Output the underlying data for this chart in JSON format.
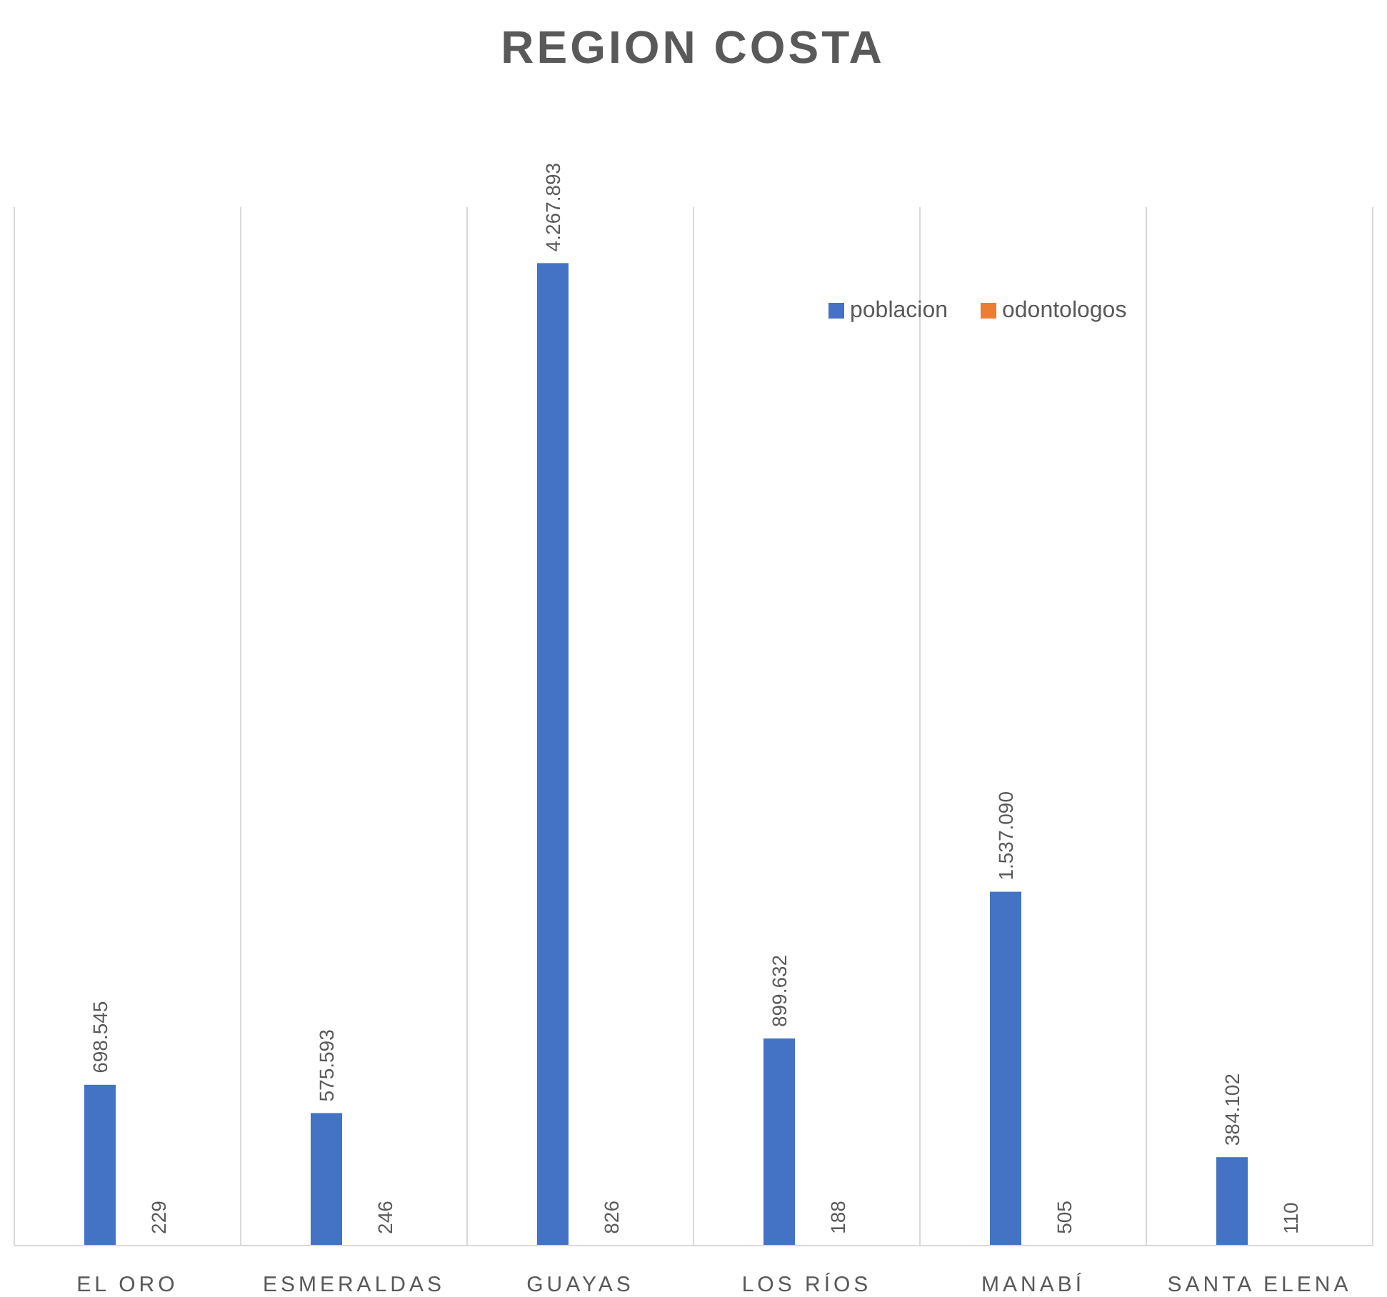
{
  "chart_data": {
    "type": "bar",
    "title": "REGION COSTA",
    "categories": [
      "EL ORO",
      "ESMERALDAS",
      "GUAYAS",
      "LOS RÍOS",
      "MANABÍ",
      "SANTA ELENA"
    ],
    "series": [
      {
        "name": "poblacion",
        "color": "#4472c4",
        "values": [
          698545,
          575593,
          4267893,
          899632,
          1537090,
          384102
        ],
        "value_labels": [
          "698.545",
          "575.593",
          "4.267.893",
          "899.632",
          "1.537.090",
          "384.102"
        ]
      },
      {
        "name": "odontologos",
        "color": "#ed7d31",
        "values": [
          229,
          246,
          826,
          188,
          505,
          110
        ],
        "value_labels": [
          "229",
          "246",
          "826",
          "188",
          "505",
          "110"
        ]
      }
    ],
    "grid": "x",
    "legend": "top right"
  }
}
